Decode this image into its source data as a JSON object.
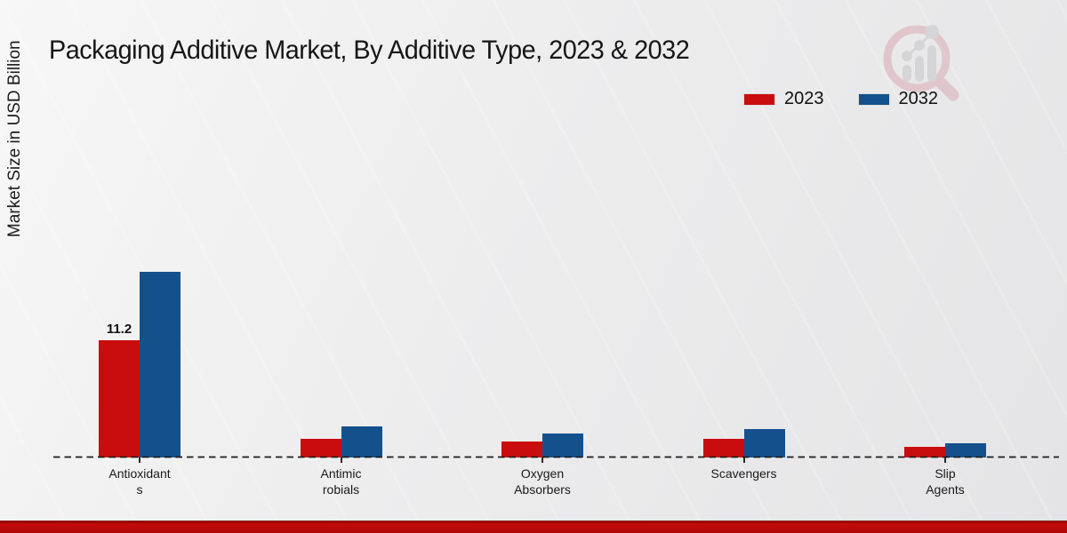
{
  "page": {
    "title": "Packaging Additive Market, By Additive Type, 2023 & 2032"
  },
  "legend": {
    "items": [
      "2023",
      "2032"
    ]
  },
  "watermark": {
    "name": "magnifier-bar-chart-logo"
  },
  "footer": {
    "accent_color": "#b40808"
  },
  "chart_data": {
    "type": "bar",
    "title": "Packaging Additive Market, By Additive Type, 2023 & 2032",
    "xlabel": "",
    "ylabel": "Market Size in USD Billion",
    "categories": [
      "Antioxidants",
      "Antimicrobials",
      "Oxygen Absorbers",
      "Scavengers",
      "Slip Agents"
    ],
    "category_label_lines": [
      [
        "Antioxidant",
        "s"
      ],
      [
        "Antimic",
        "robials"
      ],
      [
        "Oxygen",
        "Absorbers"
      ],
      [
        "Scavengers"
      ],
      [
        "Slip",
        "Agents"
      ]
    ],
    "series": [
      {
        "name": "2023",
        "color": "#c90d0e",
        "values": [
          11.2,
          1.8,
          1.5,
          1.8,
          1.0
        ]
      },
      {
        "name": "2032",
        "color": "#14518c",
        "values": [
          17.7,
          3.0,
          2.3,
          2.7,
          1.4
        ]
      }
    ],
    "annotations": [
      {
        "category": "Antioxidants",
        "series": "2023",
        "text": "11.2"
      }
    ],
    "unit": "USD Billion",
    "ylim": [
      0,
      20
    ],
    "grid": false,
    "axis_style": "dashed-baseline-only",
    "legend_position": "top-right"
  }
}
